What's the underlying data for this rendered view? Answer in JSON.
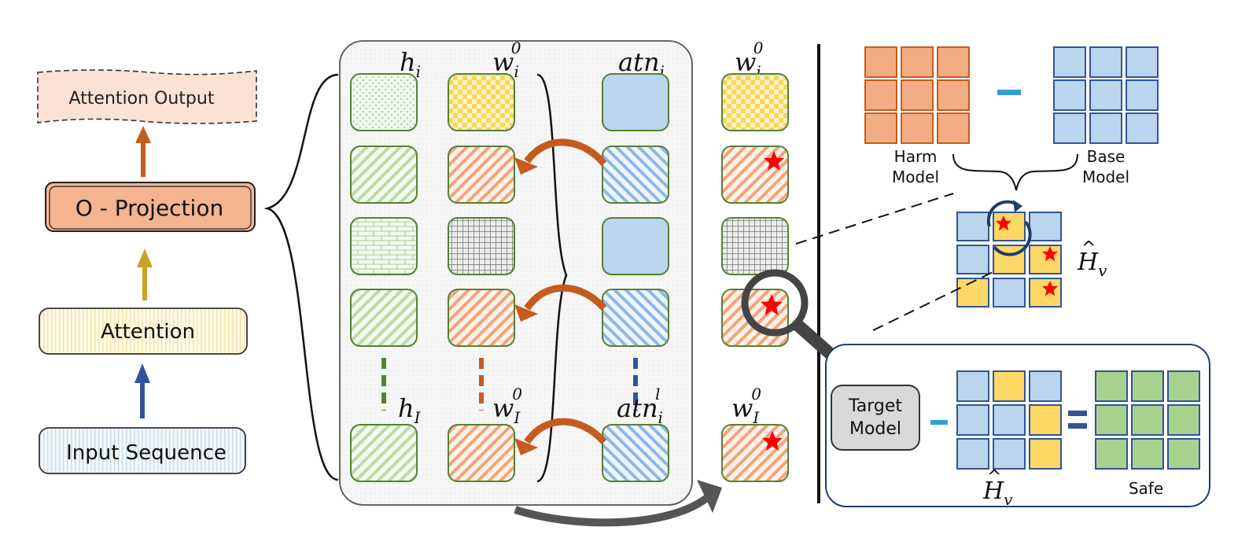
{
  "pipeline": {
    "attention_output": "Attention Output",
    "o_projection": "O - Projection",
    "attention": "Attention",
    "input_sequence": "Input Sequence"
  },
  "grid_headers": {
    "h_top": {
      "base": "h",
      "sub": "i"
    },
    "w_top": {
      "base": "w",
      "sub": "i",
      "sup": "0"
    },
    "atn_top": {
      "base": "atn",
      "sub": "i"
    },
    "w_out_top": {
      "base": "w",
      "sub": "i",
      "sup": "0"
    },
    "h_bottom": {
      "base": "h",
      "sub": "I"
    },
    "w_bottom": {
      "base": "w",
      "sub": "I",
      "sup": "0"
    },
    "atn_bottom": {
      "base": "atn",
      "sub": "i",
      "sup": "l"
    },
    "w_out_bottom": {
      "base": "w",
      "sub": "I",
      "sup": "0"
    }
  },
  "right_panel": {
    "harm_model": "Harm\nModel",
    "base_model": "Base\nModel",
    "h_v": {
      "base": "H",
      "sub": "v"
    },
    "target_model": "Target\nModel",
    "h_v_bottom": {
      "base": "H",
      "sub": "v"
    },
    "safe": "Safe"
  },
  "colors": {
    "orange": "#f2ad85",
    "orange_stroke": "#c65b1e",
    "blue": "#bcd5ee",
    "blue_stroke": "#2f5597",
    "yellow": "#fdd866",
    "green": "#a9d18e",
    "green_stroke": "#548235",
    "red_star": "#ff0000"
  }
}
